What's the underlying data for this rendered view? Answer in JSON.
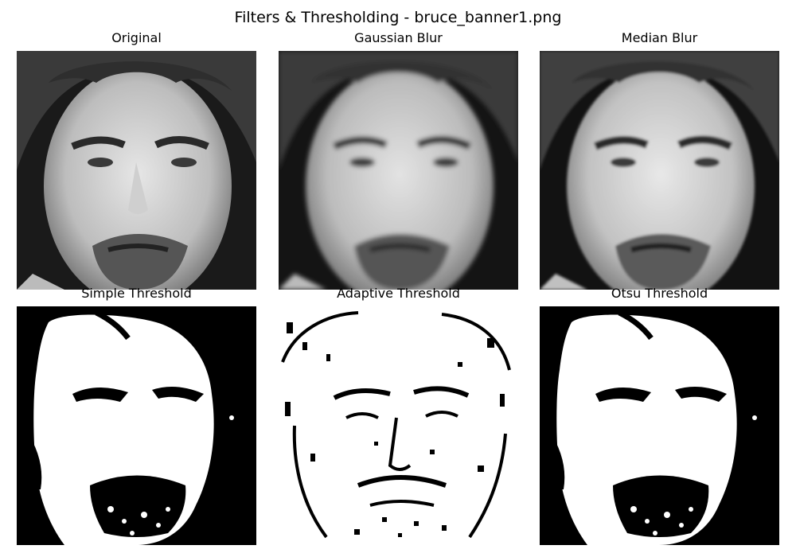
{
  "figure": {
    "title": "Filters & Thresholding - bruce_banner1.png"
  },
  "panels": [
    {
      "title": "Original",
      "style": "grayscale-photo"
    },
    {
      "title": "Gaussian Blur",
      "style": "grayscale-blurred"
    },
    {
      "title": "Median Blur",
      "style": "grayscale-median"
    },
    {
      "title": "Simple Threshold",
      "style": "binary"
    },
    {
      "title": "Adaptive Threshold",
      "style": "binary-edges"
    },
    {
      "title": "Otsu Threshold",
      "style": "binary"
    }
  ],
  "colors": {
    "background": "#ffffff",
    "ink": "#000000",
    "image_dark": "#111111",
    "image_light": "#f2f2f2"
  }
}
